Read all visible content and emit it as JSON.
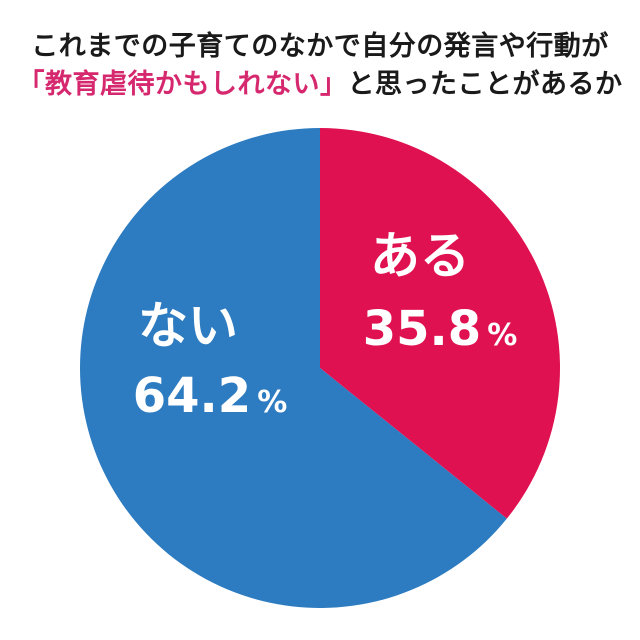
{
  "title": {
    "line1": "これまでの子育てのなかで自分の発言や行動が",
    "line2_highlight": "「教育虐待かもしれない」",
    "line2_rest": "と思ったことがあるか"
  },
  "colors": {
    "highlight": "#d6286e",
    "aru": "#e01150",
    "nai": "#2d7cc1"
  },
  "chart_data": {
    "type": "pie",
    "title": "これまでの子育てのなかで自分の発言や行動が「教育虐待かもしれない」と思ったことがあるか",
    "start": "12 o'clock, clockwise",
    "slices": [
      {
        "label": "ある",
        "value": 35.8,
        "value_text": "35.8",
        "unit": "%",
        "color": "#e01150"
      },
      {
        "label": "ない",
        "value": 64.2,
        "value_text": "64.2",
        "unit": "%",
        "color": "#2d7cc1"
      }
    ]
  }
}
